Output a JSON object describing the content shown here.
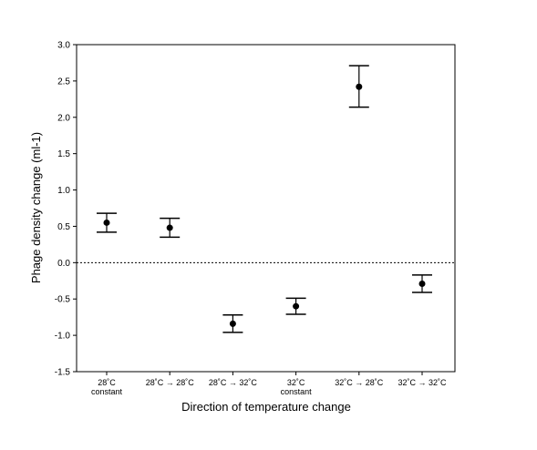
{
  "chart_data": {
    "type": "scatter",
    "xlabel": "Direction of temperature change",
    "ylabel": "Phage density change (ml-1)",
    "ylim": [
      -1.5,
      3.0
    ],
    "yticks": [
      "3.0",
      "2.5",
      "2.0",
      "1.5",
      "1.0",
      "0.5",
      "0.0",
      "-0.5",
      "-1.0",
      "-1.5"
    ],
    "grid": false,
    "reference_line": {
      "y": 0,
      "style": "dotted"
    },
    "categories": [
      {
        "line1": "28˚C",
        "line2": "constant"
      },
      {
        "line1": "28˚C → 28˚C",
        "line2": ""
      },
      {
        "line1": "28˚C → 32˚C",
        "line2": ""
      },
      {
        "line1": "32˚C",
        "line2": "constant"
      },
      {
        "line1": "32˚C → 28˚C",
        "line2": ""
      },
      {
        "line1": "32˚C → 32˚C",
        "line2": ""
      }
    ],
    "series": [
      {
        "values": [
          0.55,
          0.48,
          -0.84,
          -0.6,
          2.42,
          -0.29
        ],
        "error_low": [
          0.42,
          0.35,
          -0.96,
          -0.71,
          2.14,
          -0.41
        ],
        "error_high": [
          0.68,
          0.61,
          -0.72,
          -0.49,
          2.71,
          -0.17
        ]
      }
    ]
  }
}
